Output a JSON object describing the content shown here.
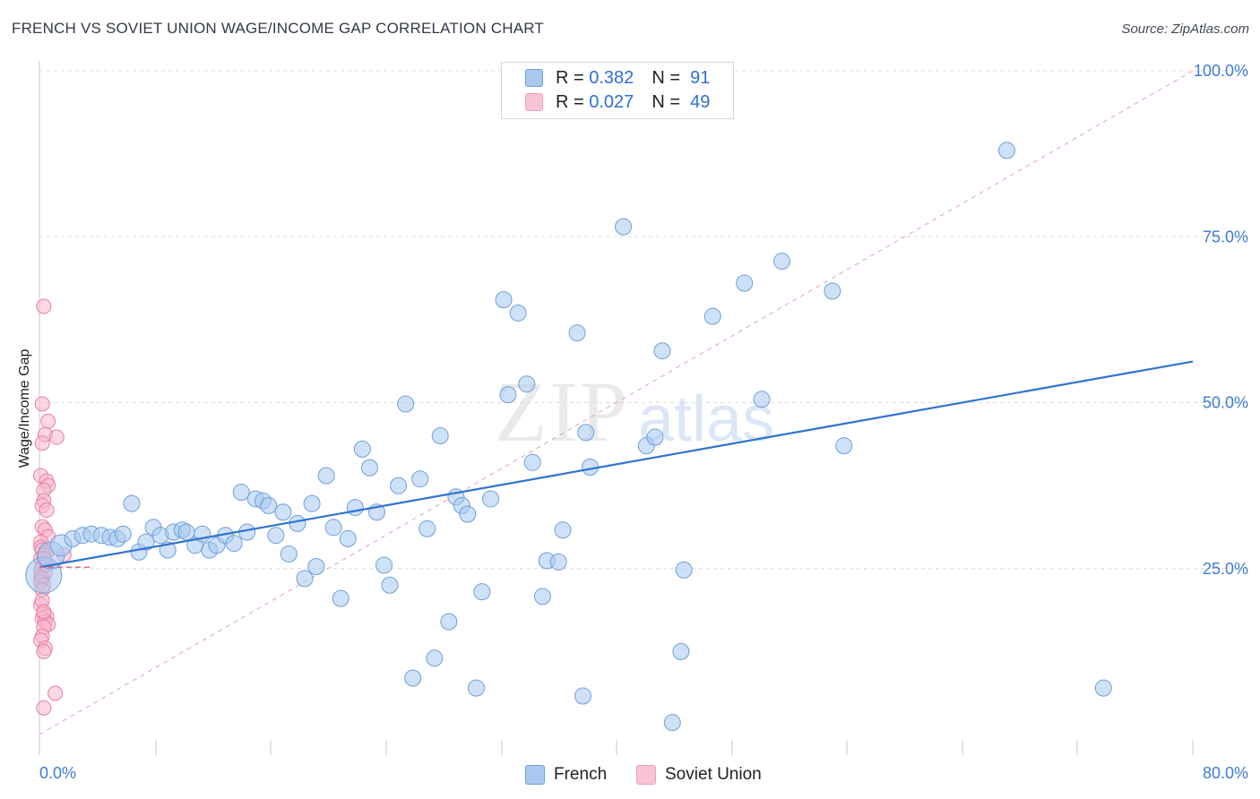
{
  "title": "FRENCH VS SOVIET UNION WAGE/INCOME GAP CORRELATION CHART",
  "source": "Source: ZipAtlas.com",
  "watermark": {
    "part1": "ZIP",
    "part2": "atlas"
  },
  "legend": {
    "rows": [
      {
        "r_label": "R =",
        "r_value": "0.382",
        "n_label": "N =",
        "n_value": "91"
      },
      {
        "r_label": "R =",
        "r_value": "0.027",
        "n_label": "N =",
        "n_value": "49"
      }
    ]
  },
  "colors": {
    "french_fill": "#a8c8f0",
    "french_stroke": "#6f9fd8",
    "soviet_fill": "#f8b8cc",
    "soviet_stroke": "#e87fa0",
    "trend_blue": "#2f74d0",
    "diag_pink": "#e8a0b0",
    "tick_text": "#3d7bd1"
  },
  "chart_data": {
    "type": "scatter",
    "title": "FRENCH VS SOVIET UNION WAGE/INCOME GAP CORRELATION CHART",
    "xlabel": "",
    "ylabel": "Wage/Income Gap",
    "xlim": [
      0,
      80
    ],
    "ylim": [
      0,
      100
    ],
    "x_tick_labels": [
      "0.0%",
      "80.0%"
    ],
    "y_ticks": [
      25,
      50,
      75,
      100
    ],
    "y_tick_labels": [
      "25.0%",
      "50.0%",
      "75.0%",
      "100.0%"
    ],
    "grid": true,
    "series": [
      {
        "name": "French",
        "r": 0.382,
        "n": 91,
        "trend": {
          "x": [
            0,
            80
          ],
          "y": [
            25.2,
            56.2
          ]
        },
        "points": [
          [
            0.3,
            24.0
          ],
          [
            0.8,
            27.0
          ],
          [
            1.5,
            28.5
          ],
          [
            2.3,
            29.5
          ],
          [
            3.0,
            30.0
          ],
          [
            3.6,
            30.2
          ],
          [
            4.3,
            30.0
          ],
          [
            4.9,
            29.7
          ],
          [
            5.4,
            29.5
          ],
          [
            5.8,
            30.2
          ],
          [
            6.4,
            34.8
          ],
          [
            6.9,
            27.5
          ],
          [
            7.4,
            29.0
          ],
          [
            7.9,
            31.2
          ],
          [
            8.4,
            30.0
          ],
          [
            8.9,
            27.8
          ],
          [
            9.3,
            30.5
          ],
          [
            9.9,
            30.8
          ],
          [
            10.2,
            30.5
          ],
          [
            10.8,
            28.5
          ],
          [
            11.3,
            30.2
          ],
          [
            11.8,
            27.8
          ],
          [
            12.3,
            28.5
          ],
          [
            12.9,
            30.0
          ],
          [
            13.5,
            28.8
          ],
          [
            14.0,
            36.5
          ],
          [
            14.4,
            30.5
          ],
          [
            15.0,
            35.5
          ],
          [
            15.5,
            35.2
          ],
          [
            15.9,
            34.5
          ],
          [
            16.4,
            30.0
          ],
          [
            16.9,
            33.5
          ],
          [
            17.3,
            27.2
          ],
          [
            17.9,
            31.8
          ],
          [
            18.4,
            23.5
          ],
          [
            18.9,
            34.8
          ],
          [
            19.2,
            25.3
          ],
          [
            19.9,
            39.0
          ],
          [
            20.4,
            31.2
          ],
          [
            20.9,
            20.5
          ],
          [
            21.4,
            29.5
          ],
          [
            21.9,
            34.2
          ],
          [
            22.4,
            43.0
          ],
          [
            22.9,
            40.2
          ],
          [
            23.4,
            33.5
          ],
          [
            23.9,
            25.5
          ],
          [
            24.3,
            22.5
          ],
          [
            24.9,
            37.5
          ],
          [
            25.4,
            49.8
          ],
          [
            25.9,
            8.5
          ],
          [
            26.4,
            38.5
          ],
          [
            26.9,
            31.0
          ],
          [
            27.4,
            11.5
          ],
          [
            27.8,
            45.0
          ],
          [
            28.4,
            17.0
          ],
          [
            28.9,
            35.8
          ],
          [
            29.3,
            34.5
          ],
          [
            29.7,
            33.2
          ],
          [
            30.3,
            7.0
          ],
          [
            30.7,
            21.5
          ],
          [
            31.3,
            35.5
          ],
          [
            32.2,
            65.5
          ],
          [
            32.5,
            51.2
          ],
          [
            33.2,
            63.5
          ],
          [
            33.8,
            52.8
          ],
          [
            34.2,
            41.0
          ],
          [
            34.9,
            20.8
          ],
          [
            35.2,
            26.2
          ],
          [
            36.0,
            26.0
          ],
          [
            36.3,
            30.8
          ],
          [
            37.3,
            60.5
          ],
          [
            37.7,
            5.8
          ],
          [
            37.9,
            45.5
          ],
          [
            38.2,
            40.3
          ],
          [
            40.5,
            76.5
          ],
          [
            42.1,
            43.5
          ],
          [
            42.7,
            44.8
          ],
          [
            43.2,
            57.8
          ],
          [
            43.9,
            1.8
          ],
          [
            44.5,
            12.5
          ],
          [
            44.7,
            24.8
          ],
          [
            46.7,
            63.0
          ],
          [
            48.9,
            68.0
          ],
          [
            50.1,
            50.5
          ],
          [
            51.5,
            71.3
          ],
          [
            55.0,
            66.8
          ],
          [
            55.8,
            43.5
          ],
          [
            67.1,
            88.0
          ],
          [
            73.8,
            7.0
          ]
        ]
      },
      {
        "name": "Soviet Union",
        "r": 0.027,
        "n": 49,
        "trend": {
          "x": [
            0,
            3.5
          ],
          "y": [
            25.2,
            25.2
          ]
        },
        "points": [
          [
            0.3,
            64.5
          ],
          [
            0.2,
            49.8
          ],
          [
            0.6,
            47.2
          ],
          [
            0.4,
            45.2
          ],
          [
            1.2,
            44.8
          ],
          [
            0.2,
            43.9
          ],
          [
            0.1,
            39.0
          ],
          [
            0.5,
            38.2
          ],
          [
            0.6,
            37.5
          ],
          [
            0.3,
            36.8
          ],
          [
            0.3,
            35.2
          ],
          [
            0.2,
            34.5
          ],
          [
            0.2,
            31.3
          ],
          [
            0.4,
            30.8
          ],
          [
            0.6,
            29.8
          ],
          [
            0.1,
            29.0
          ],
          [
            0.1,
            28.2
          ],
          [
            0.2,
            27.8
          ],
          [
            0.5,
            27.4
          ],
          [
            0.3,
            27.0
          ],
          [
            0.1,
            26.5
          ],
          [
            0.3,
            26.0
          ],
          [
            0.5,
            25.6
          ],
          [
            0.2,
            25.2
          ],
          [
            0.1,
            24.8
          ],
          [
            0.4,
            24.4
          ],
          [
            0.1,
            23.8
          ],
          [
            0.2,
            23.5
          ],
          [
            0.1,
            23.0
          ],
          [
            0.3,
            22.5
          ],
          [
            0.2,
            21.8
          ],
          [
            0.1,
            19.5
          ],
          [
            0.3,
            18.2
          ],
          [
            0.5,
            17.8
          ],
          [
            0.2,
            17.5
          ],
          [
            0.4,
            17.0
          ],
          [
            0.6,
            16.6
          ],
          [
            0.3,
            16.2
          ],
          [
            0.2,
            14.8
          ],
          [
            0.1,
            14.2
          ],
          [
            0.4,
            13.0
          ],
          [
            0.3,
            12.5
          ],
          [
            1.1,
            6.2
          ],
          [
            0.3,
            4.0
          ],
          [
            1.7,
            27.1
          ],
          [
            0.2,
            20.2
          ],
          [
            0.3,
            26.5
          ],
          [
            0.5,
            33.8
          ],
          [
            0.3,
            18.5
          ]
        ]
      }
    ],
    "diagonal_reference": {
      "x": [
        0,
        80
      ],
      "y": [
        0,
        100
      ]
    }
  },
  "bottom_legend": {
    "french": "French",
    "soviet": "Soviet Union"
  }
}
